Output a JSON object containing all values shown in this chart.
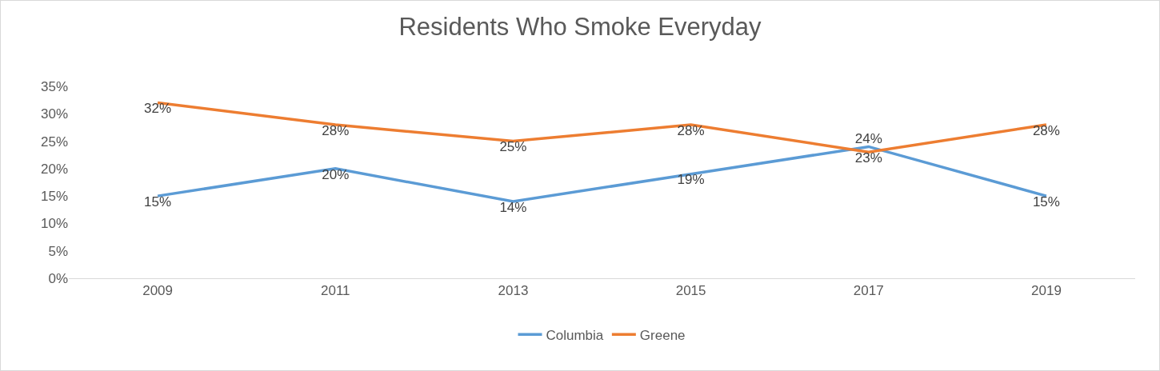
{
  "chart_data": {
    "type": "line",
    "title": "Residents Who Smoke Everyday",
    "categories": [
      "2009",
      "2011",
      "2013",
      "2015",
      "2017",
      "2019"
    ],
    "series": [
      {
        "name": "Columbia",
        "color": "#5b9bd5",
        "values": [
          15,
          20,
          14,
          19,
          24,
          15
        ],
        "value_labels": [
          "15%",
          "20%",
          "14%",
          "19%",
          "24%",
          "15%"
        ]
      },
      {
        "name": "Greene",
        "color": "#ed7d31",
        "values": [
          32,
          28,
          25,
          28,
          23,
          28
        ],
        "value_labels": [
          "32%",
          "28%",
          "25%",
          "28%",
          "23%",
          "28%"
        ]
      }
    ],
    "ylim": [
      0,
      35
    ],
    "yticks": [
      {
        "value": 0,
        "label": "0%"
      },
      {
        "value": 5,
        "label": "5%"
      },
      {
        "value": 10,
        "label": "10%"
      },
      {
        "value": 15,
        "label": "15%"
      },
      {
        "value": 20,
        "label": "20%"
      },
      {
        "value": 25,
        "label": "25%"
      },
      {
        "value": 30,
        "label": "30%"
      },
      {
        "value": 35,
        "label": "35%"
      }
    ],
    "grid": false,
    "legend": "bottom",
    "marker": "none",
    "line_style": "solid"
  }
}
